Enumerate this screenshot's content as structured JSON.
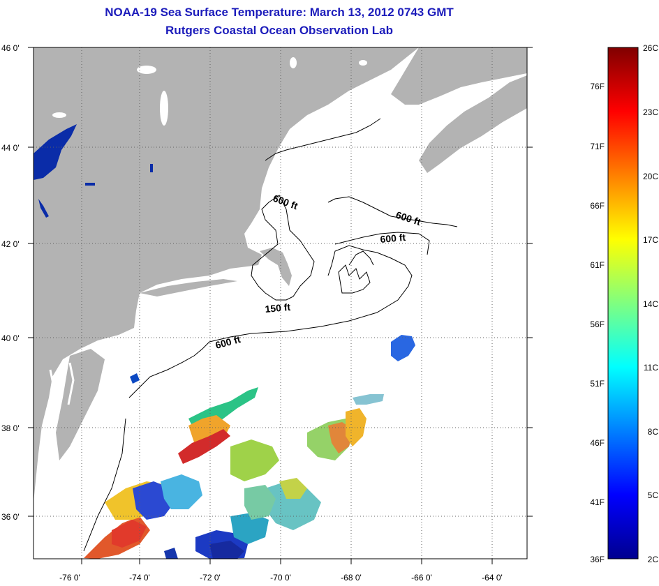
{
  "title_line1": "NOAA-19 Sea Surface Temperature:  March 13, 2012 0743 GMT",
  "title_line2": "Rutgers Coastal Ocean Observation Lab",
  "lat_labels": [
    "46 0'",
    "44 0'",
    "42 0'",
    "40 0'",
    "38 0'",
    "36 0'"
  ],
  "lon_labels": [
    "-76 0'",
    "-74 0'",
    "-72 0'",
    "-70 0'",
    "-68 0'",
    "-66 0'",
    "-64 0'"
  ],
  "contour_labels": [
    "600 ft",
    "600 ft",
    "600 ft",
    "150 ft",
    "600 ft"
  ],
  "colorbar": {
    "fahrenheit": [
      "76F",
      "71F",
      "66F",
      "61F",
      "56F",
      "51F",
      "46F",
      "41F",
      "36F"
    ],
    "celsius": [
      "26C",
      "23C",
      "20C",
      "17C",
      "14C",
      "11C",
      "8C",
      "5C",
      "2C"
    ]
  },
  "colors": {
    "title": "#1c1cbb",
    "land": "#b3b3b3",
    "ocean_nodata": "#ffffff"
  }
}
